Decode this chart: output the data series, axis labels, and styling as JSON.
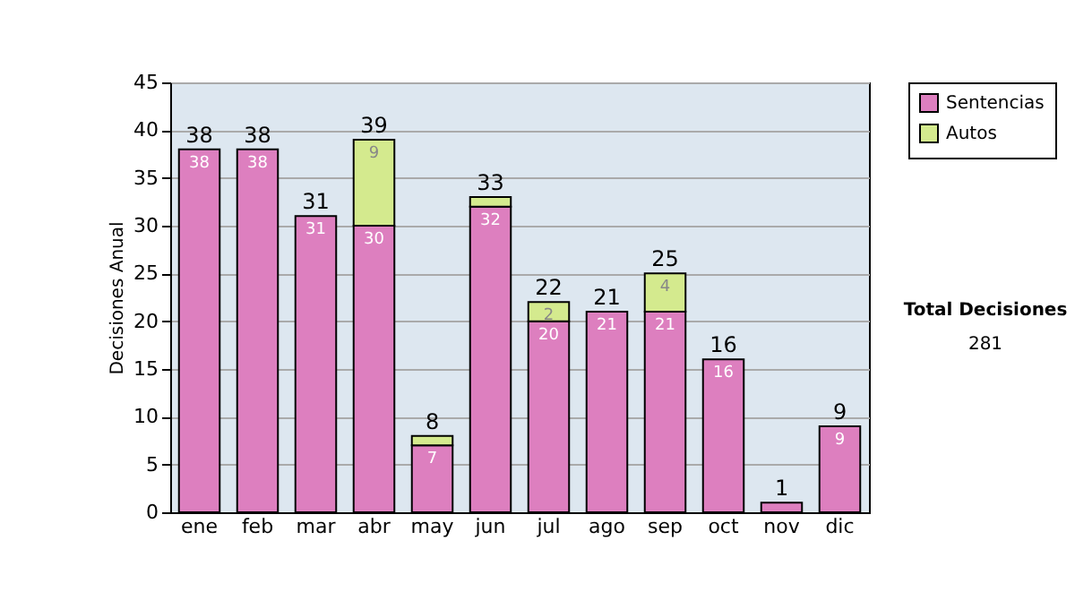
{
  "chart_data": {
    "type": "bar",
    "stacked": true,
    "ylabel": "Decisiones Anual",
    "categories": [
      "ene",
      "feb",
      "mar",
      "abr",
      "may",
      "jun",
      "jul",
      "ago",
      "sep",
      "oct",
      "nov",
      "dic"
    ],
    "series": [
      {
        "name": "Sentencias",
        "color": "#dd7fbf",
        "values": [
          38,
          38,
          31,
          30,
          7,
          32,
          20,
          21,
          21,
          16,
          1,
          9
        ],
        "value_labels": [
          "38",
          "38",
          "31",
          "30",
          "7",
          "32",
          "20",
          "21",
          "21",
          "16",
          null,
          "9"
        ]
      },
      {
        "name": "Autos",
        "color": "#d4ea8e",
        "values": [
          0,
          0,
          0,
          9,
          1,
          1,
          2,
          0,
          4,
          0,
          0,
          0
        ],
        "value_labels": [
          null,
          null,
          null,
          "9",
          null,
          null,
          "2",
          null,
          "4",
          null,
          null,
          null
        ]
      }
    ],
    "totals": [
      "38",
      "38",
      "31",
      "39",
      "8",
      "33",
      "22",
      "21",
      "25",
      "16",
      "1",
      "9"
    ],
    "ylim": [
      0,
      45
    ],
    "yticks": [
      0,
      5,
      10,
      15,
      20,
      25,
      30,
      35,
      40,
      45
    ],
    "grid": "y",
    "legend": "right",
    "annotations": [
      "Total Decisiones",
      "281"
    ]
  }
}
